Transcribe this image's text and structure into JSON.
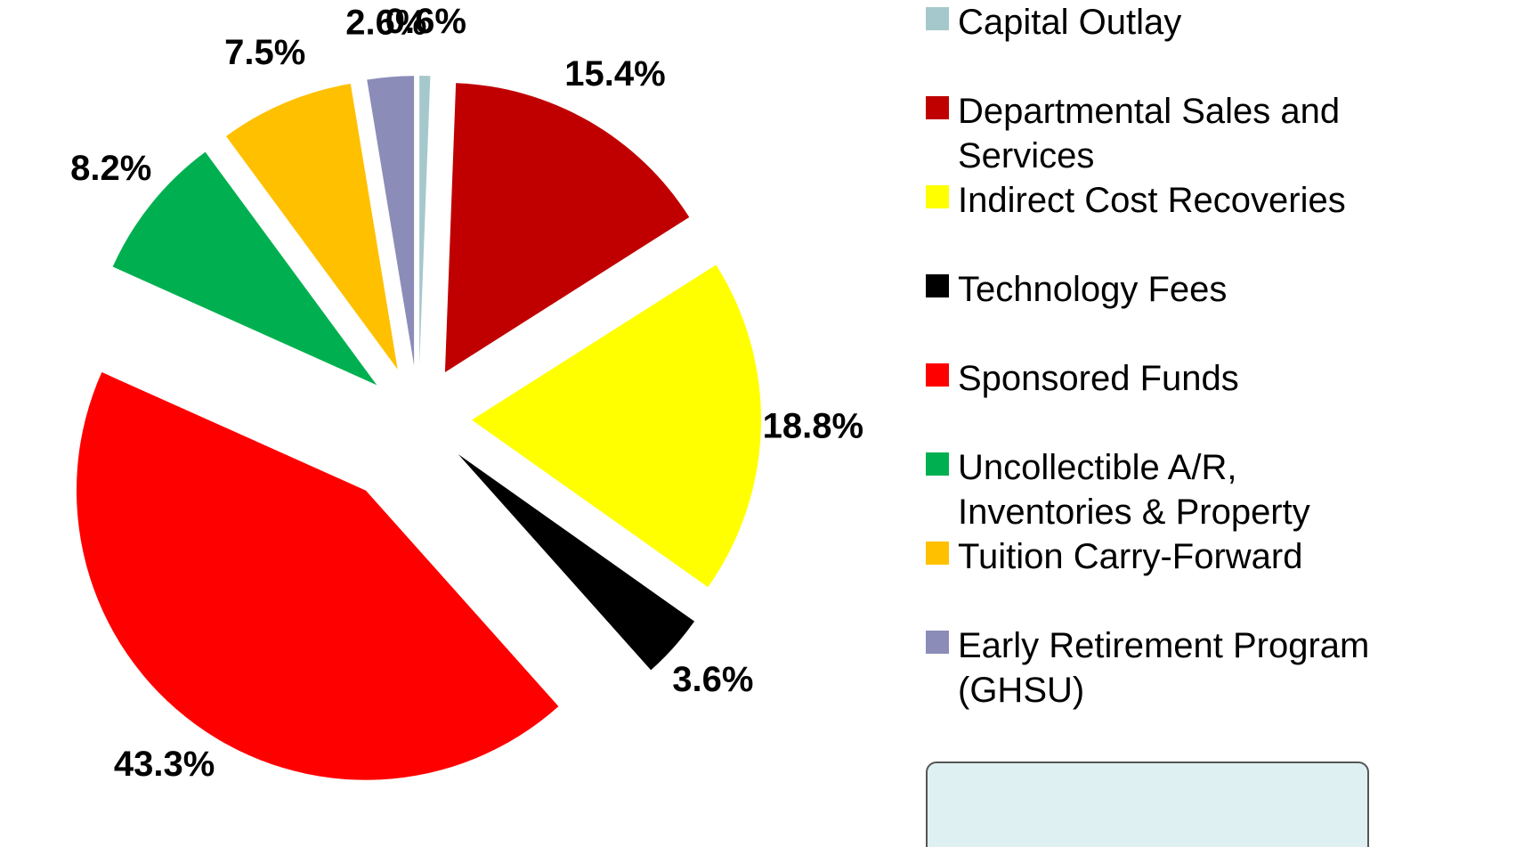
{
  "chart_data": {
    "type": "pie",
    "categories": [
      "Capital Outlay",
      "Departmental Sales and Services",
      "Indirect Cost Recoveries",
      "Technology Fees",
      "Sponsored Funds",
      "Uncollectible A/R, Inventories & Property",
      "Tuition Carry-Forward",
      "Early Retirement Program (GHSU)"
    ],
    "values": [
      0.6,
      15.4,
      18.8,
      3.6,
      43.3,
      8.2,
      7.5,
      2.6
    ],
    "value_labels": [
      "0.6%",
      "15.4%",
      "18.8%",
      "3.6%",
      "43.3%",
      "8.2%",
      "7.5%",
      "2.6%"
    ],
    "colors": [
      "#a5c8cc",
      "#c00000",
      "#ffff00",
      "#000000",
      "#ff0000",
      "#00b050",
      "#ffc000",
      "#8c8cb8"
    ],
    "legend": "right"
  }
}
